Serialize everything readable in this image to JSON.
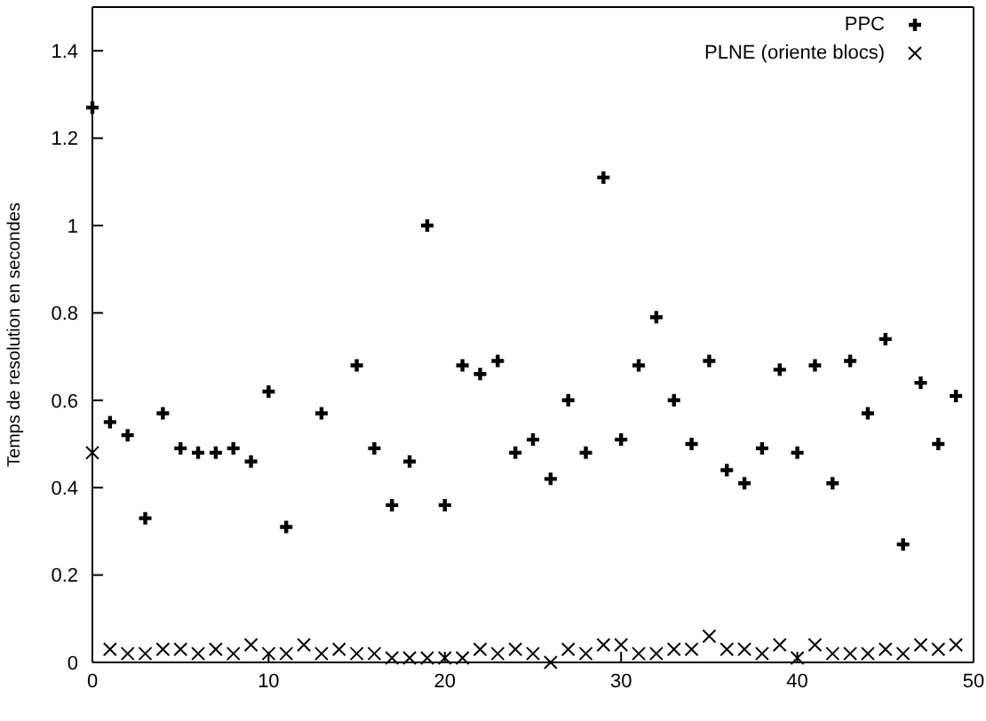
{
  "chart_data": {
    "type": "scatter",
    "ylabel": "Temps de resolution en secondes",
    "x": [
      0,
      1,
      2,
      3,
      4,
      5,
      6,
      7,
      8,
      9,
      10,
      11,
      12,
      13,
      14,
      15,
      16,
      17,
      18,
      19,
      20,
      21,
      22,
      23,
      24,
      25,
      26,
      27,
      28,
      29,
      30,
      31,
      32,
      33,
      34,
      35,
      36,
      37,
      38,
      39,
      40,
      41,
      42,
      43,
      44,
      45,
      46,
      47,
      48,
      49
    ],
    "series": [
      {
        "name": "PPC",
        "color": "#000000",
        "marker": "cross",
        "values": [
          1.27,
          0.55,
          0.52,
          0.33,
          0.57,
          0.49,
          0.48,
          0.48,
          0.49,
          0.46,
          0.62,
          0.31,
          null,
          0.57,
          null,
          0.68,
          0.49,
          0.36,
          0.46,
          1.0,
          0.36,
          0.68,
          0.66,
          0.69,
          0.48,
          0.51,
          0.42,
          0.6,
          0.48,
          1.11,
          0.51,
          0.68,
          0.79,
          0.6,
          0.5,
          0.69,
          0.44,
          0.41,
          0.49,
          0.67,
          0.48,
          0.68,
          0.41,
          0.69,
          0.57,
          0.74,
          0.27,
          0.64,
          0.5,
          0.61
        ]
      },
      {
        "name": "PLNE (oriente blocs)",
        "color": "#000000",
        "marker": "x",
        "values": [
          0.48,
          0.03,
          0.02,
          0.02,
          0.03,
          0.03,
          0.02,
          0.03,
          0.02,
          0.04,
          0.02,
          0.02,
          0.04,
          0.02,
          0.03,
          0.02,
          0.02,
          0.01,
          0.01,
          0.01,
          0.01,
          0.01,
          0.03,
          0.02,
          0.03,
          0.02,
          0.0,
          0.03,
          0.02,
          0.04,
          0.04,
          0.02,
          0.02,
          0.03,
          0.03,
          0.06,
          0.03,
          0.03,
          0.02,
          0.04,
          0.01,
          0.04,
          0.02,
          0.02,
          0.02,
          0.03,
          0.02,
          0.04,
          0.03,
          0.04
        ]
      }
    ],
    "xlim": [
      0,
      50
    ],
    "xticks": [
      0,
      10,
      20,
      30,
      40,
      50
    ],
    "ylim": [
      0,
      1.5
    ],
    "yticks": [
      0,
      0.2,
      0.4,
      0.6,
      0.8,
      1,
      1.2,
      1.4
    ],
    "grid": false,
    "legend": "top right"
  }
}
